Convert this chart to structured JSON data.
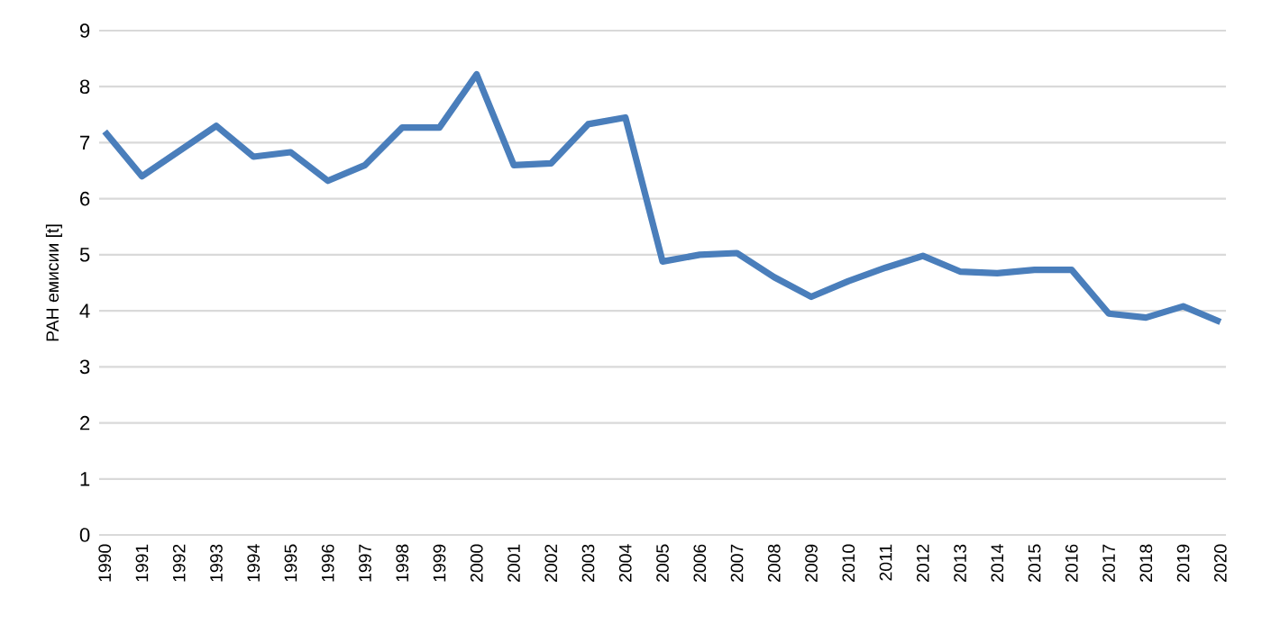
{
  "chart_data": {
    "type": "line",
    "ylabel": "PAH емисии [t]",
    "categories": [
      "1990",
      "1991",
      "1992",
      "1993",
      "1994",
      "1995",
      "1996",
      "1997",
      "1998",
      "1999",
      "2000",
      "2001",
      "2002",
      "2003",
      "2004",
      "2005",
      "2006",
      "2007",
      "2008",
      "2009",
      "2010",
      "2011",
      "2012",
      "2013",
      "2014",
      "2015",
      "2016",
      "2017",
      "2018",
      "2019",
      "2020"
    ],
    "series": [
      {
        "color": "#4a7ebb",
        "values": [
          7.2,
          6.4,
          6.85,
          7.3,
          6.75,
          6.83,
          6.32,
          6.6,
          7.27,
          7.27,
          8.22,
          6.6,
          6.63,
          7.33,
          7.45,
          4.88,
          5.0,
          5.03,
          4.6,
          4.25,
          4.53,
          4.77,
          4.98,
          4.7,
          4.67,
          4.73,
          4.73,
          3.95,
          3.88,
          4.08,
          3.8
        ]
      }
    ],
    "ylim": [
      0,
      9
    ],
    "yticks": [
      0,
      1,
      2,
      3,
      4,
      5,
      6,
      7,
      8,
      9
    ],
    "grid": "y",
    "marker": "none",
    "line_style": "solid"
  }
}
